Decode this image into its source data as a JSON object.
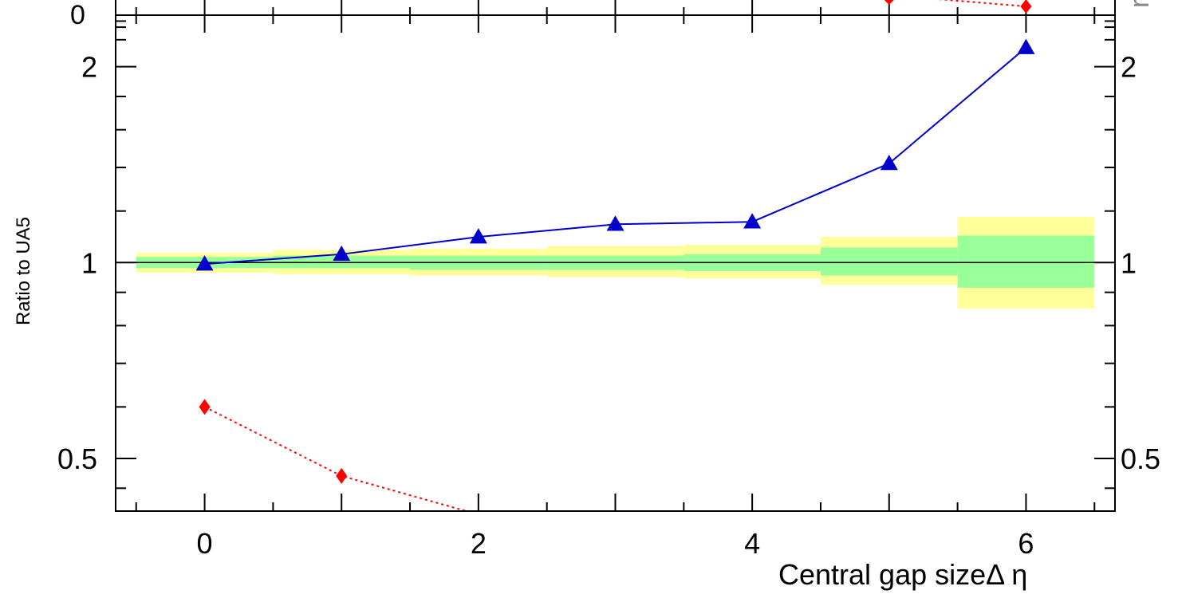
{
  "chart_data": {
    "type": "line",
    "xlabel": "Central gap size",
    "xlabel_symbol": "Δ η",
    "ylabel": "Ratio to UA5",
    "xlim": [
      -0.65,
      6.65
    ],
    "ylim": [
      0.415,
      2.4
    ],
    "y_scale": "log",
    "x_ticks": [
      0,
      2,
      4,
      6
    ],
    "x_tick_labels": [
      "0",
      "2",
      "4",
      "6"
    ],
    "y_ticks": [
      0.5,
      1,
      2
    ],
    "y_tick_labels": [
      "0.5",
      "1",
      "2"
    ],
    "right_axis_labels": [
      "0.5",
      "1",
      "2"
    ],
    "reference_line": 1,
    "grid": false,
    "bands": {
      "x_bins": [
        [
          -0.5,
          0.5
        ],
        [
          0.5,
          1.5
        ],
        [
          1.5,
          2.5
        ],
        [
          2.5,
          3.5
        ],
        [
          3.5,
          4.5
        ],
        [
          4.5,
          5.5
        ],
        [
          5.5,
          6.5
        ]
      ],
      "inner": {
        "color": "#99ff99",
        "low": [
          0.98,
          0.98,
          0.975,
          0.975,
          0.97,
          0.955,
          0.915
        ],
        "high": [
          1.02,
          1.025,
          1.025,
          1.025,
          1.03,
          1.055,
          1.1
        ]
      },
      "outer": {
        "color": "#ffff99",
        "low": [
          0.965,
          0.96,
          0.955,
          0.95,
          0.945,
          0.925,
          0.85
        ],
        "high": [
          1.035,
          1.045,
          1.05,
          1.06,
          1.065,
          1.095,
          1.175
        ]
      }
    },
    "series": [
      {
        "x": [
          0,
          1,
          2,
          3,
          4,
          5,
          6
        ],
        "values": [
          0.995,
          1.03,
          1.095,
          1.145,
          1.155,
          1.42,
          2.14
        ],
        "color": "#0000cc",
        "marker": "triangle",
        "line": "solid"
      },
      {
        "x": [
          0,
          1,
          2
        ],
        "values": [
          0.6,
          0.47,
          0.41
        ],
        "color": "#ff0000",
        "marker": "diamond",
        "line": "dotted"
      }
    ],
    "clipped_fragments": {
      "top_left_text": "0",
      "top_right_text": "r"
    }
  }
}
